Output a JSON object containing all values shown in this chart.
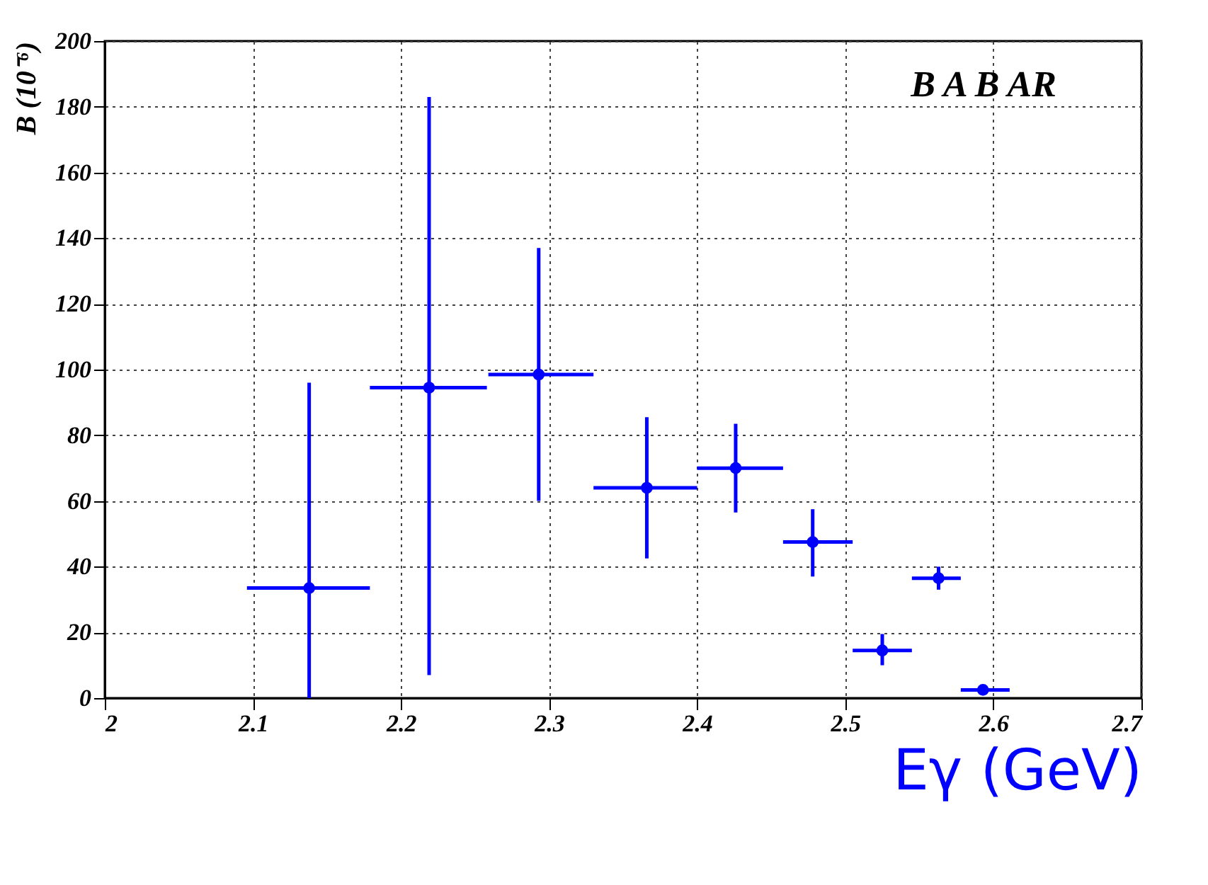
{
  "chart_data": {
    "type": "scatter",
    "xlabel": "Eγ (GeV)",
    "ylabel": "B (10⁻⁶)",
    "annotations": [
      "B  A B  AR"
    ],
    "x": [
      2.138,
      2.219,
      2.293,
      2.366,
      2.426,
      2.478,
      2.525,
      2.563,
      2.593
    ],
    "series": [
      {
        "color": "#0000ff",
        "values": [
          33.5,
          94.5,
          98.5,
          64,
          70,
          47.5,
          14.5,
          36.5,
          2.5
        ],
        "errors": [
          [
            0,
            96
          ],
          [
            7,
            183
          ],
          [
            60,
            137
          ],
          [
            42.5,
            85.5
          ],
          [
            56.5,
            83.5
          ],
          [
            37,
            57.5
          ],
          [
            10,
            19.5
          ],
          [
            33,
            40
          ],
          null
        ],
        "xerrors": [
          [
            2.096,
            2.179
          ],
          [
            2.179,
            2.258
          ],
          [
            2.259,
            2.33
          ],
          [
            2.33,
            2.4
          ],
          [
            2.4,
            2.458
          ],
          [
            2.458,
            2.505
          ],
          [
            2.505,
            2.545
          ],
          [
            2.545,
            2.578
          ],
          [
            2.578,
            2.611
          ]
        ]
      }
    ],
    "xlim": [
      2,
      2.7
    ],
    "xticks": [
      2,
      2.1,
      2.2,
      2.3,
      2.4,
      2.5,
      2.6,
      2.7
    ],
    "ylim": [
      0,
      200
    ],
    "yticks": [
      0,
      20,
      40,
      60,
      80,
      100,
      120,
      140,
      160,
      180,
      200
    ],
    "grid": true,
    "marker": "circle",
    "legend": false
  }
}
